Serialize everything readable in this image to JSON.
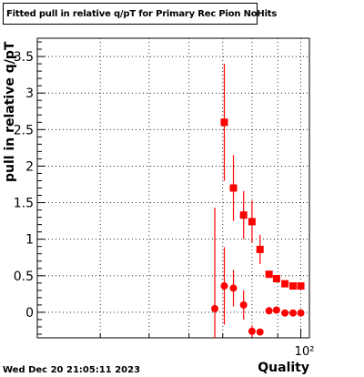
{
  "chart_data": {
    "type": "scatter",
    "title": "Fitted pull in relative q/pT for Primary Rec Pion NoHits",
    "xlabel": "Quality",
    "ylabel": "pull in relative q/pT",
    "x_scale": "log",
    "x_tick_label": "10²",
    "xlim": [
      30,
      104
    ],
    "ylim": [
      -0.35,
      3.75
    ],
    "y_ticks": [
      0,
      0.5,
      1,
      1.5,
      2,
      2.5,
      3,
      3.5
    ],
    "y_tick_labels": [
      "0",
      "0.5",
      "1",
      "1.5",
      "2",
      "2.5",
      "3",
      "3.5"
    ],
    "grid": true,
    "series": [
      {
        "marker": "square",
        "color": "#ff0000",
        "points": [
          {
            "x": 70.5,
            "y": 2.6,
            "err": 0.8
          },
          {
            "x": 73.5,
            "y": 1.7,
            "err": 0.45
          },
          {
            "x": 77.0,
            "y": 1.33,
            "err": 0.33
          },
          {
            "x": 80.0,
            "y": 1.24,
            "err": 0.29
          },
          {
            "x": 83.0,
            "y": 0.86,
            "err": 0.2
          },
          {
            "x": 86.5,
            "y": 0.52,
            "err": 0.03
          },
          {
            "x": 89.5,
            "y": 0.46,
            "err": 0.03
          },
          {
            "x": 93.0,
            "y": 0.39,
            "err": 0.03
          },
          {
            "x": 96.5,
            "y": 0.36,
            "err": 0.02
          },
          {
            "x": 100.0,
            "y": 0.36,
            "err": 0.02
          }
        ]
      },
      {
        "marker": "circle",
        "color": "#ff0000",
        "points": [
          {
            "x": 67.5,
            "y": 0.05,
            "err": 1.38
          },
          {
            "x": 70.5,
            "y": 0.36,
            "err": 0.53
          },
          {
            "x": 73.5,
            "y": 0.33,
            "err": 0.25
          },
          {
            "x": 77.0,
            "y": 0.1,
            "err": 0.2
          },
          {
            "x": 80.0,
            "y": -0.26,
            "err": 0.08
          },
          {
            "x": 83.0,
            "y": -0.27,
            "err": 0.04
          },
          {
            "x": 86.5,
            "y": 0.02,
            "err": 0.02
          },
          {
            "x": 89.5,
            "y": 0.03,
            "err": 0.02
          },
          {
            "x": 93.0,
            "y": -0.01,
            "err": 0.01
          },
          {
            "x": 96.5,
            "y": -0.01,
            "err": 0.01
          },
          {
            "x": 100.0,
            "y": -0.01,
            "err": 0.01
          }
        ]
      }
    ]
  },
  "footer": {
    "timestamp": "Wed Dec 20 21:05:11 2023"
  }
}
